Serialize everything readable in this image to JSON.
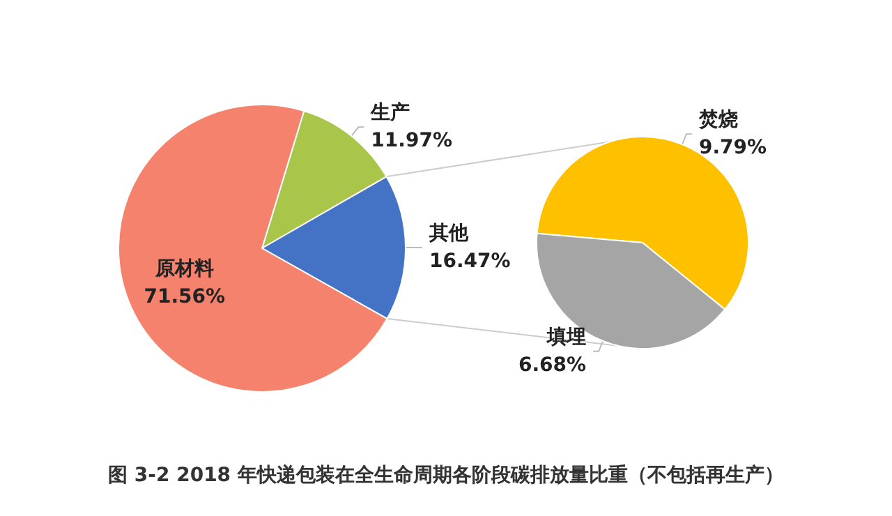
{
  "chart_data": [
    {
      "type": "pie",
      "categories": [
        "生产",
        "其他",
        "原材料"
      ],
      "values": [
        11.97,
        16.47,
        71.56
      ],
      "colors": [
        "#a9c64a",
        "#4472c4",
        "#f4826c"
      ],
      "value_labels": [
        "11.97%",
        "16.47%",
        "71.56%"
      ],
      "annotations": [
        "图 3-2 2018 年快递包装在全生命周期各阶段碳排放量比重（不包括再生产）"
      ]
    },
    {
      "type": "pie",
      "categories": [
        "焚烧",
        "填埋"
      ],
      "values": [
        9.79,
        6.68
      ],
      "colors": [
        "#ffc000",
        "#a5a5a5"
      ],
      "value_labels": [
        "9.79%",
        "6.68%"
      ]
    }
  ]
}
